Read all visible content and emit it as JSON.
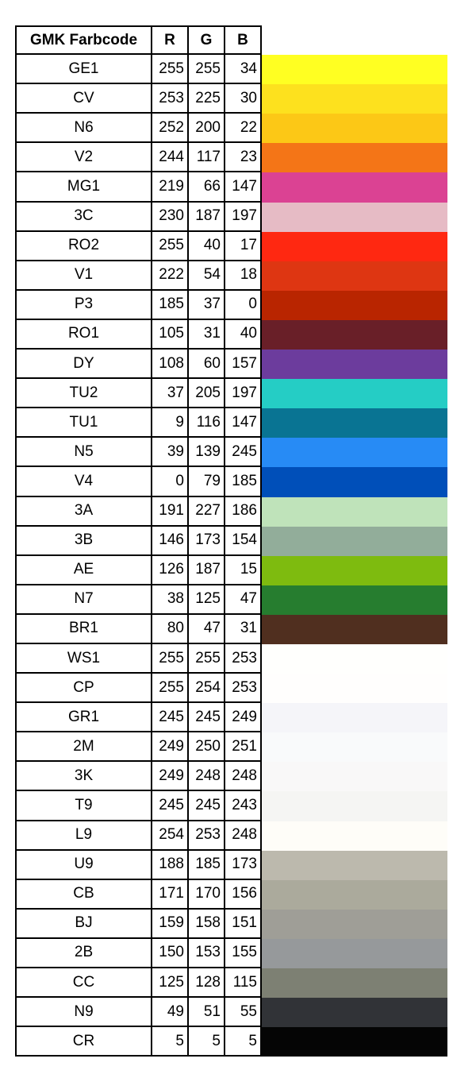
{
  "table": {
    "headers": {
      "code": "GMK Farbcode",
      "r": "R",
      "g": "G",
      "b": "B"
    },
    "rows": [
      {
        "code": "GE1",
        "r": "255",
        "g": "255",
        "b": "34",
        "color": "#FFFF22"
      },
      {
        "code": "CV",
        "r": "253",
        "g": "225",
        "b": "30",
        "color": "#FDE11E"
      },
      {
        "code": "N6",
        "r": "252",
        "g": "200",
        "b": "22",
        "color": "#FCC816"
      },
      {
        "code": "V2",
        "r": "244",
        "g": "117",
        "b": "23",
        "color": "#F47517"
      },
      {
        "code": "MG1",
        "r": "219",
        "g": "66",
        "b": "147",
        "color": "#DB4293"
      },
      {
        "code": "3C",
        "r": "230",
        "g": "187",
        "b": "197",
        "color": "#E6BBC5"
      },
      {
        "code": "RO2",
        "r": "255",
        "g": "40",
        "b": "17",
        "color": "#FF2811"
      },
      {
        "code": "V1",
        "r": "222",
        "g": "54",
        "b": "18",
        "color": "#DE3612"
      },
      {
        "code": "P3",
        "r": "185",
        "g": "37",
        "b": "0",
        "color": "#B92500"
      },
      {
        "code": "RO1",
        "r": "105",
        "g": "31",
        "b": "40",
        "color": "#691F28"
      },
      {
        "code": "DY",
        "r": "108",
        "g": "60",
        "b": "157",
        "color": "#6C3C9D"
      },
      {
        "code": "TU2",
        "r": "37",
        "g": "205",
        "b": "197",
        "color": "#25CDC5"
      },
      {
        "code": "TU1",
        "r": "9",
        "g": "116",
        "b": "147",
        "color": "#097493"
      },
      {
        "code": "N5",
        "r": "39",
        "g": "139",
        "b": "245",
        "color": "#278BF5"
      },
      {
        "code": "V4",
        "r": "0",
        "g": "79",
        "b": "185",
        "color": "#004FB9"
      },
      {
        "code": "3A",
        "r": "191",
        "g": "227",
        "b": "186",
        "color": "#BFE3BA"
      },
      {
        "code": "3B",
        "r": "146",
        "g": "173",
        "b": "154",
        "color": "#92AD9A"
      },
      {
        "code": "AE",
        "r": "126",
        "g": "187",
        "b": "15",
        "color": "#7EBB0F"
      },
      {
        "code": "N7",
        "r": "38",
        "g": "125",
        "b": "47",
        "color": "#267D2F"
      },
      {
        "code": "BR1",
        "r": "80",
        "g": "47",
        "b": "31",
        "color": "#502F1F"
      },
      {
        "code": "WS1",
        "r": "255",
        "g": "255",
        "b": "253",
        "color": "#FFFFFD"
      },
      {
        "code": "CP",
        "r": "255",
        "g": "254",
        "b": "253",
        "color": "#FFFEFD"
      },
      {
        "code": "GR1",
        "r": "245",
        "g": "245",
        "b": "249",
        "color": "#F5F5F9"
      },
      {
        "code": "2M",
        "r": "249",
        "g": "250",
        "b": "251",
        "color": "#F9FAFB"
      },
      {
        "code": "3K",
        "r": "249",
        "g": "248",
        "b": "248",
        "color": "#F9F8F8"
      },
      {
        "code": "T9",
        "r": "245",
        "g": "245",
        "b": "243",
        "color": "#F5F5F3"
      },
      {
        "code": "L9",
        "r": "254",
        "g": "253",
        "b": "248",
        "color": "#FEFDF8"
      },
      {
        "code": "U9",
        "r": "188",
        "g": "185",
        "b": "173",
        "color": "#BCB9AD"
      },
      {
        "code": "CB",
        "r": "171",
        "g": "170",
        "b": "156",
        "color": "#ABAA9C"
      },
      {
        "code": "BJ",
        "r": "159",
        "g": "158",
        "b": "151",
        "color": "#9F9E97"
      },
      {
        "code": "2B",
        "r": "150",
        "g": "153",
        "b": "155",
        "color": "#96999B"
      },
      {
        "code": "CC",
        "r": "125",
        "g": "128",
        "b": "115",
        "color": "#7D8073"
      },
      {
        "code": "N9",
        "r": "49",
        "g": "51",
        "b": "55",
        "color": "#313337"
      },
      {
        "code": "CR",
        "r": "5",
        "g": "5",
        "b": "5",
        "color": "#050505"
      }
    ]
  }
}
